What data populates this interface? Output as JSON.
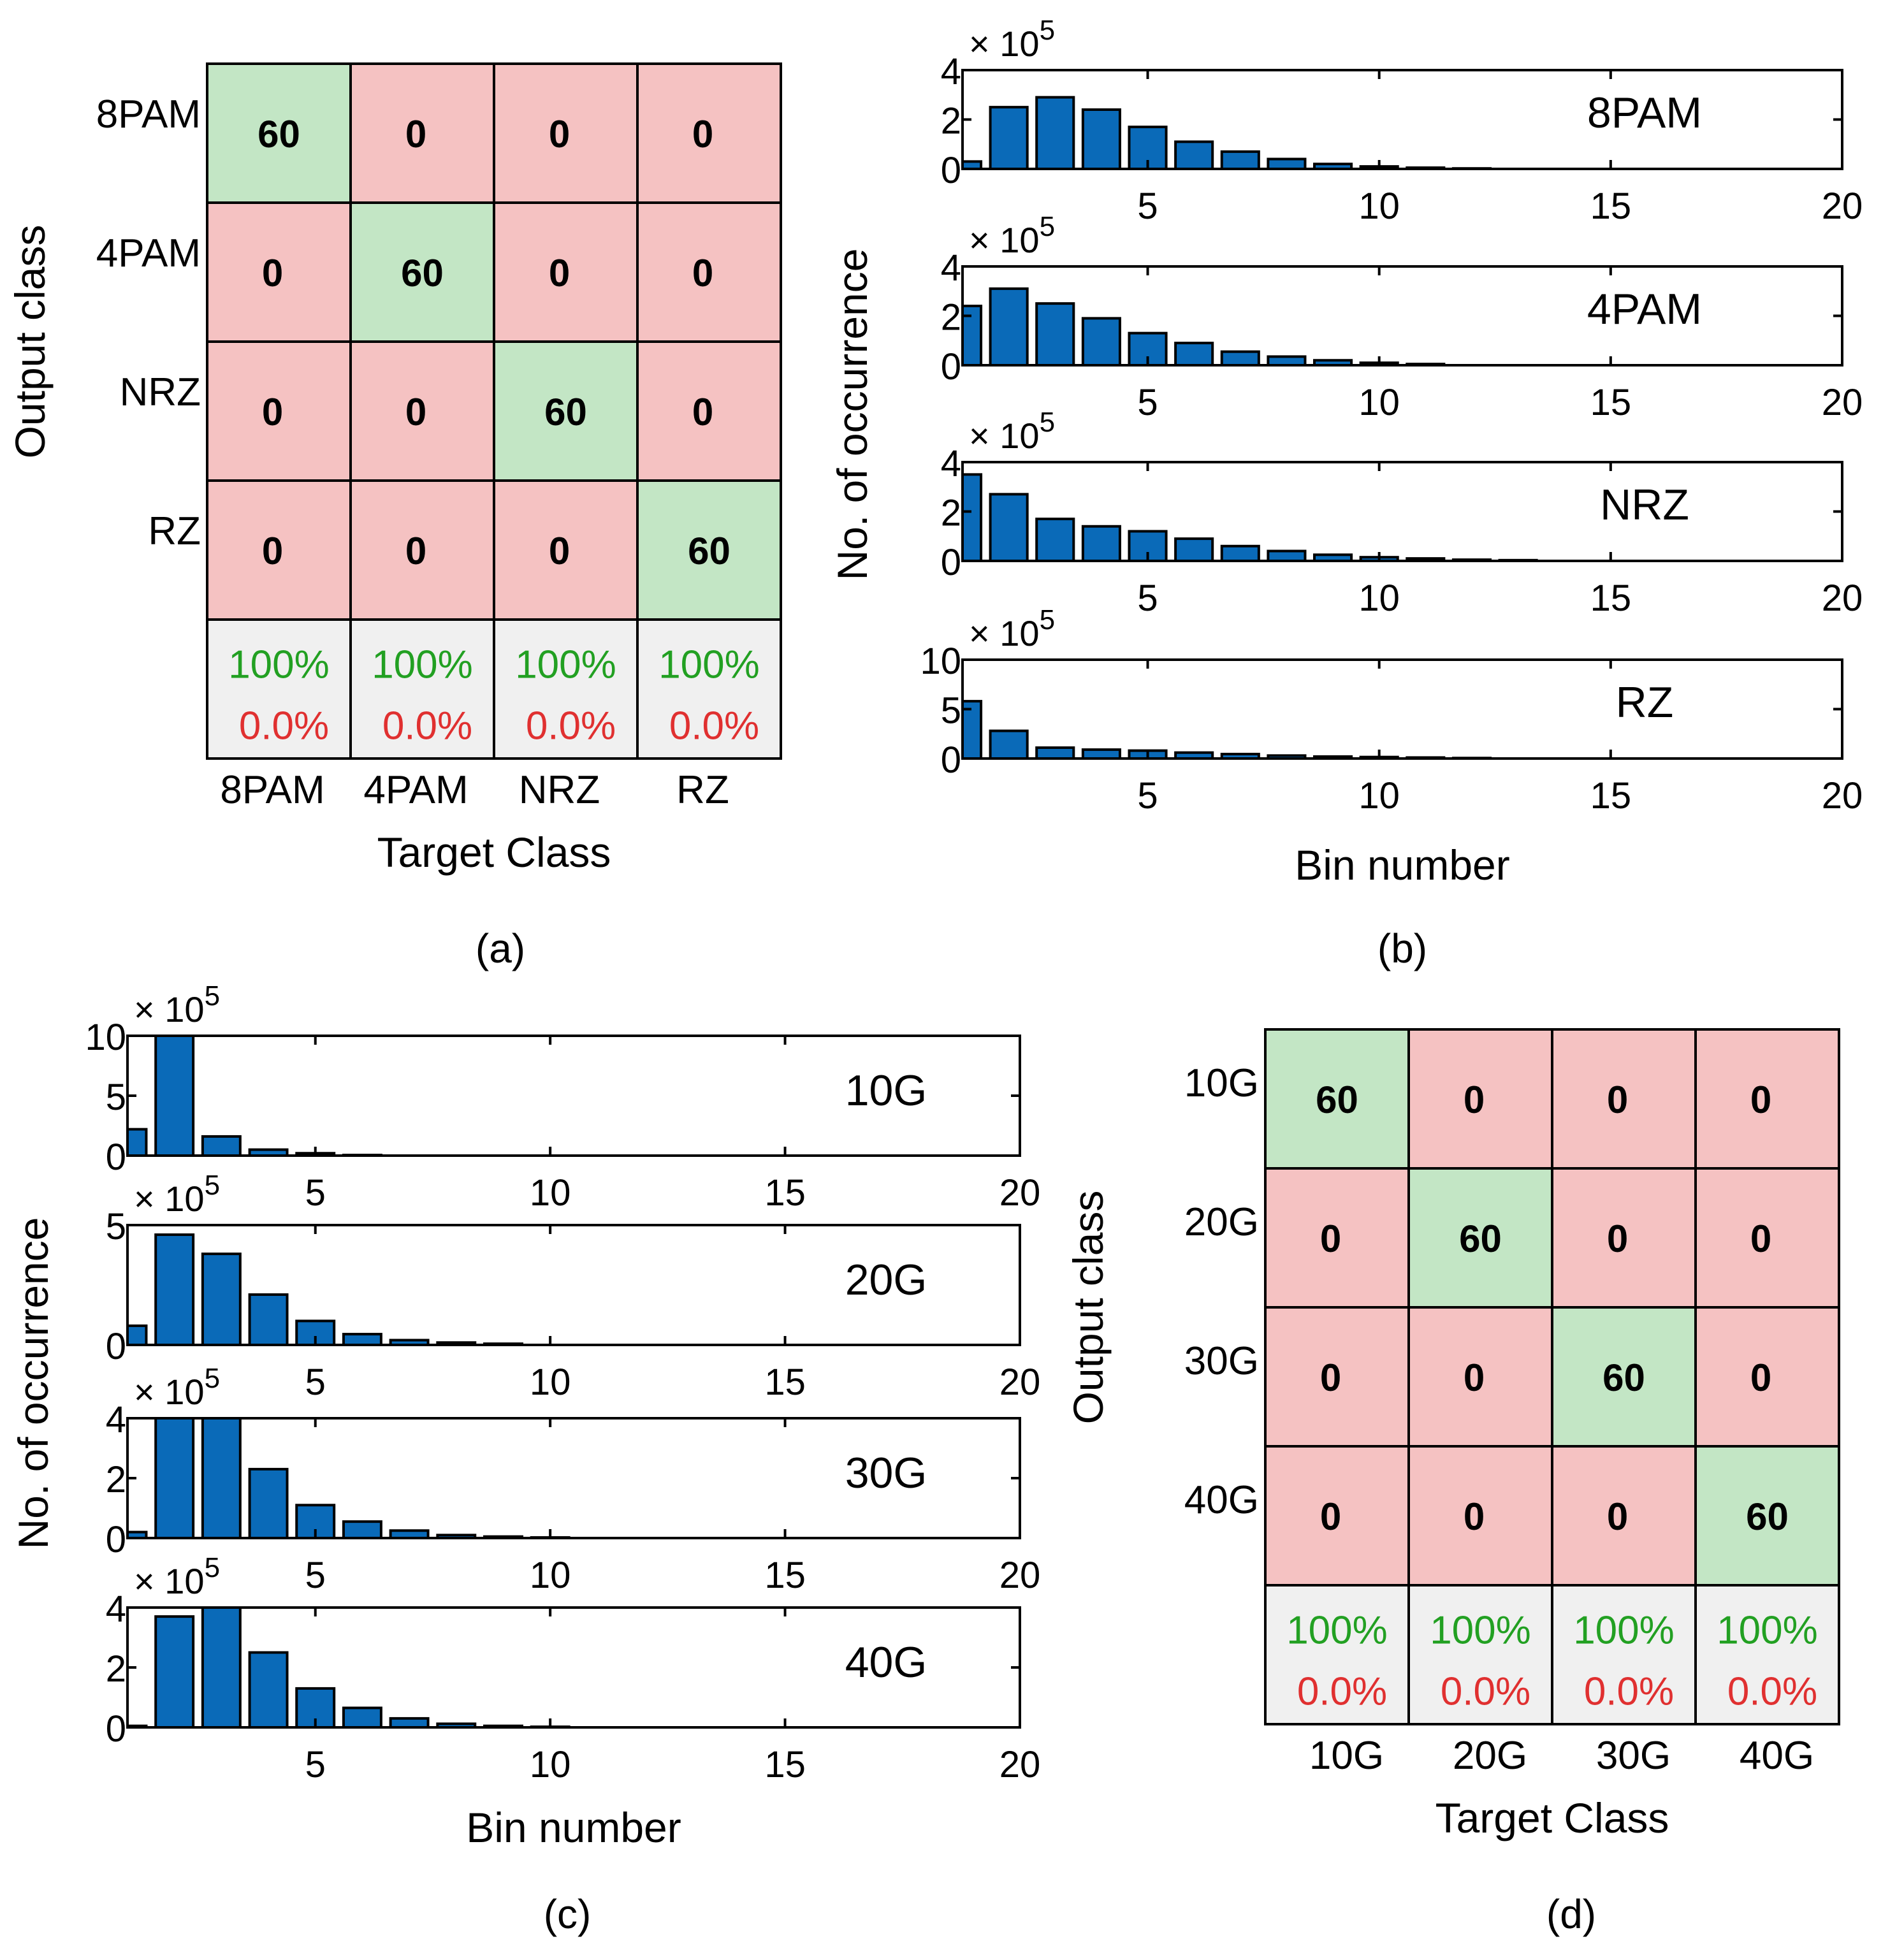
{
  "colors": {
    "bar": "#0a6ab8",
    "bar_edge": "#000000",
    "correct_cell": "#c3e6c5",
    "wrong_cell": "#f5c2c2",
    "summary_cell": "#f0f0f0",
    "pct_correct": "#22a022",
    "pct_wrong": "#e03030",
    "axis": "#000000"
  },
  "panels": {
    "a": {
      "label": "(a)"
    },
    "b": {
      "label": "(b)"
    },
    "c": {
      "label": "(c)"
    },
    "d": {
      "label": "(d)"
    }
  },
  "chart_data": [
    {
      "id": "a",
      "type": "table",
      "xlabel": "Target Class",
      "ylabel": "Output class",
      "classes": [
        "8PAM",
        "4PAM",
        "NRZ",
        "RZ"
      ],
      "matrix": [
        [
          60,
          0,
          0,
          0
        ],
        [
          0,
          60,
          0,
          0
        ],
        [
          0,
          0,
          60,
          0
        ],
        [
          0,
          0,
          0,
          60
        ]
      ],
      "summary_correct": [
        "100%",
        "100%",
        "100%",
        "100%"
      ],
      "summary_wrong": [
        "0.0%",
        "0.0%",
        "0.0%",
        "0.0%"
      ]
    },
    {
      "id": "b",
      "type": "bar",
      "xlabel": "Bin number",
      "ylabel": "No. of occurrence",
      "xlim": [
        1,
        20
      ],
      "xticks": [
        5,
        10,
        15,
        20
      ],
      "multiplier_base": "× 10",
      "multiplier_exp": "5",
      "subplots": [
        {
          "label": "8PAM",
          "ylim": [
            0,
            4
          ],
          "yticks": [
            0,
            2,
            4
          ],
          "values": [
            0.3,
            2.5,
            2.9,
            2.4,
            1.7,
            1.1,
            0.7,
            0.4,
            0.2,
            0.1,
            0.05,
            0.02
          ]
        },
        {
          "label": "4PAM",
          "ylim": [
            0,
            4
          ],
          "yticks": [
            0,
            2,
            4
          ],
          "values": [
            2.4,
            3.1,
            2.5,
            1.9,
            1.3,
            0.9,
            0.55,
            0.35,
            0.2,
            0.1,
            0.05
          ]
        },
        {
          "label": "NRZ",
          "ylim": [
            0,
            4
          ],
          "yticks": [
            0,
            2,
            4
          ],
          "values": [
            3.5,
            2.7,
            1.7,
            1.4,
            1.2,
            0.9,
            0.6,
            0.4,
            0.25,
            0.15,
            0.1,
            0.05,
            0.03
          ]
        },
        {
          "label": "RZ",
          "ylim": [
            0,
            10
          ],
          "yticks": [
            0,
            5,
            10
          ],
          "values": [
            5.8,
            2.8,
            1.1,
            0.9,
            0.8,
            0.6,
            0.45,
            0.3,
            0.2,
            0.15,
            0.1,
            0.05
          ]
        }
      ]
    },
    {
      "id": "c",
      "type": "bar",
      "xlabel": "Bin number",
      "ylabel": "No. of occurrence",
      "xlim": [
        1,
        20
      ],
      "xticks": [
        5,
        10,
        15,
        20
      ],
      "multiplier_base": "× 10",
      "multiplier_exp": "5",
      "subplots": [
        {
          "label": "10G",
          "ylim": [
            0,
            10
          ],
          "yticks": [
            0,
            5,
            10
          ],
          "values": [
            2.2,
            10.0,
            1.6,
            0.5,
            0.2,
            0.05
          ]
        },
        {
          "label": "20G",
          "ylim": [
            0,
            5
          ],
          "yticks": [
            0,
            5
          ],
          "values": [
            0.8,
            4.6,
            3.8,
            2.1,
            1.0,
            0.45,
            0.2,
            0.1,
            0.05
          ]
        },
        {
          "label": "30G",
          "ylim": [
            0,
            4
          ],
          "yticks": [
            0,
            2,
            4
          ],
          "values": [
            0.2,
            4.4,
            4.4,
            2.3,
            1.1,
            0.55,
            0.25,
            0.1,
            0.05,
            0.02
          ]
        },
        {
          "label": "40G",
          "ylim": [
            0,
            4
          ],
          "yticks": [
            0,
            2,
            4
          ],
          "values": [
            0.05,
            3.7,
            4.1,
            2.5,
            1.3,
            0.65,
            0.3,
            0.12,
            0.05,
            0.02
          ]
        }
      ]
    },
    {
      "id": "d",
      "type": "table",
      "xlabel": "Target Class",
      "ylabel": "Output class",
      "classes": [
        "10G",
        "20G",
        "30G",
        "40G"
      ],
      "matrix": [
        [
          60,
          0,
          0,
          0
        ],
        [
          0,
          60,
          0,
          0
        ],
        [
          0,
          0,
          60,
          0
        ],
        [
          0,
          0,
          0,
          60
        ]
      ],
      "summary_correct": [
        "100%",
        "100%",
        "100%",
        "100%"
      ],
      "summary_wrong": [
        "0.0%",
        "0.0%",
        "0.0%",
        "0.0%"
      ]
    }
  ]
}
